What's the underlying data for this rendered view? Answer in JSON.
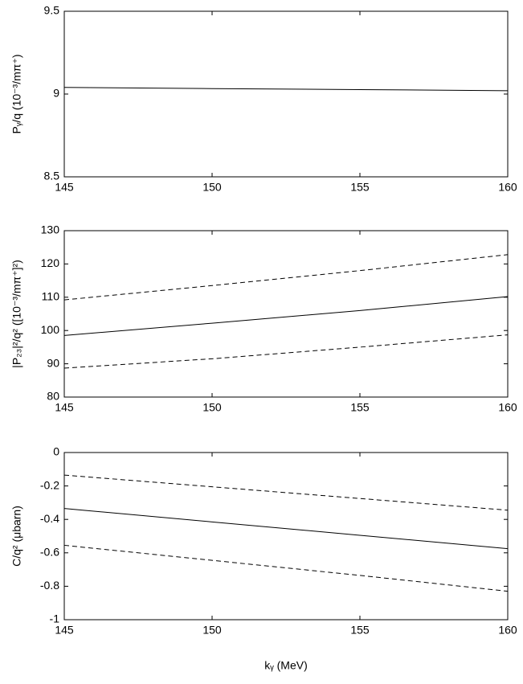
{
  "chart_data": [
    {
      "type": "line",
      "ylabel": "Pᵧ/q   (10⁻³/mπ⁺)",
      "x": [
        145,
        150,
        155,
        160
      ],
      "xlim": [
        145,
        160
      ],
      "xticks": [
        145,
        150,
        155,
        160
      ],
      "ylim": [
        8.5,
        9.5
      ],
      "yticks": [
        8.5,
        9,
        9.5
      ],
      "series": [
        {
          "color": "#000000",
          "dash": false,
          "values": [
            9.04,
            9.033,
            9.027,
            9.02
          ]
        }
      ]
    },
    {
      "type": "line",
      "ylabel": "|P₂₃|²/q²  ([10⁻³/mπ⁺]²)",
      "x": [
        145,
        150,
        155,
        160
      ],
      "xlim": [
        145,
        160
      ],
      "xticks": [
        145,
        150,
        155,
        160
      ],
      "ylim": [
        80,
        130
      ],
      "yticks": [
        80,
        90,
        100,
        110,
        120,
        130
      ],
      "series": [
        {
          "color": "#000000",
          "dash": false,
          "values": [
            98.5,
            102.2,
            106,
            110.2
          ]
        },
        {
          "color": "#000000",
          "dash": true,
          "values": [
            109.2,
            113.5,
            118,
            122.8
          ]
        },
        {
          "color": "#000000",
          "dash": true,
          "values": [
            88.7,
            91.5,
            95,
            98.7
          ]
        }
      ]
    },
    {
      "type": "line",
      "ylabel": "C/q²  (μbarn)",
      "xlabel": "kᵧ   (MeV)",
      "x": [
        145,
        150,
        155,
        160
      ],
      "xlim": [
        145,
        160
      ],
      "xticks": [
        145,
        150,
        155,
        160
      ],
      "ylim": [
        -1,
        0
      ],
      "yticks": [
        -1,
        -0.8,
        -0.6,
        -0.4,
        -0.2,
        0
      ],
      "series": [
        {
          "color": "#000000",
          "dash": false,
          "values": [
            -0.335,
            -0.415,
            -0.495,
            -0.575
          ]
        },
        {
          "color": "#000000",
          "dash": true,
          "values": [
            -0.135,
            -0.205,
            -0.275,
            -0.345
          ]
        },
        {
          "color": "#000000",
          "dash": true,
          "values": [
            -0.555,
            -0.645,
            -0.735,
            -0.83
          ]
        }
      ]
    }
  ]
}
